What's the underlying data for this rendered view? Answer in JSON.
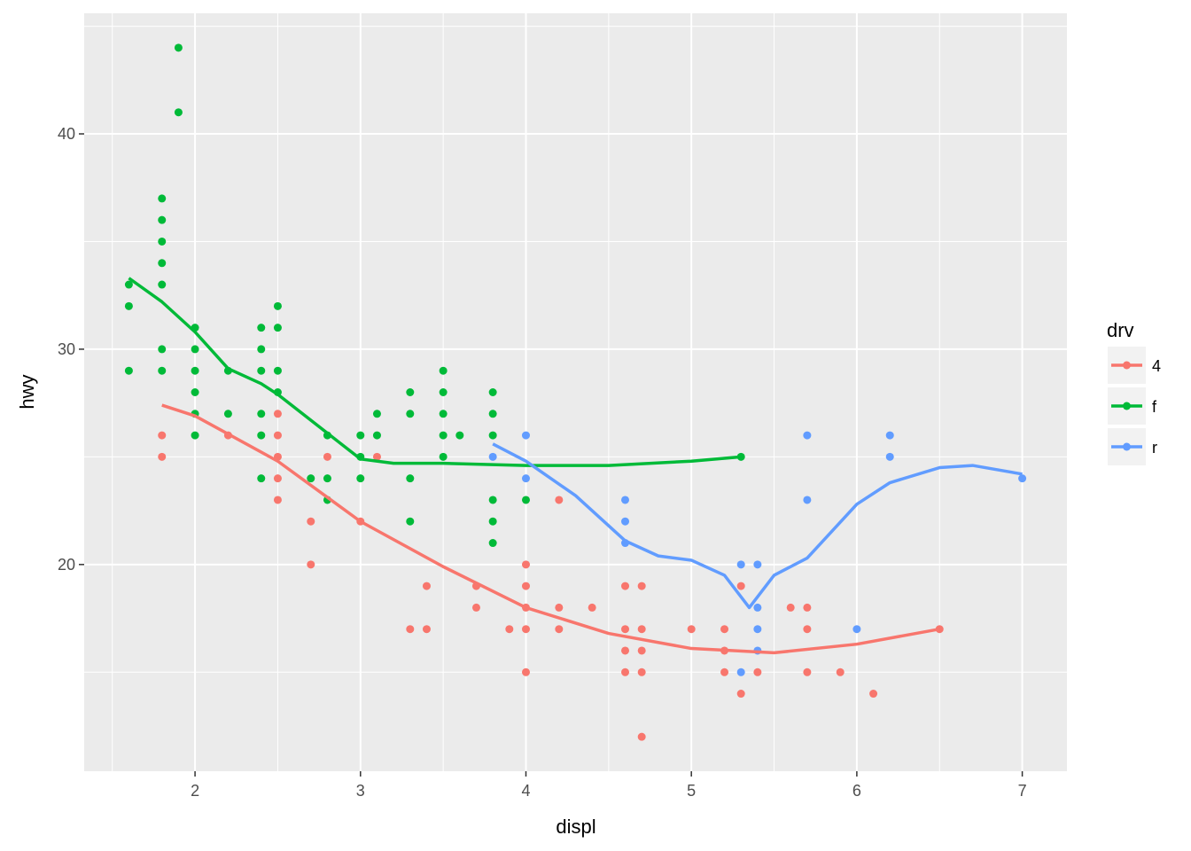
{
  "chart_data": {
    "type": "scatter",
    "xlabel": "displ",
    "ylabel": "hwy",
    "xlim": [
      1.33,
      7.27
    ],
    "ylim": [
      10.4,
      45.6
    ],
    "xticks": [
      2,
      3,
      4,
      5,
      6,
      7
    ],
    "yticks": [
      20,
      30,
      40
    ],
    "x_minor_breaks": [
      1.5,
      2.5,
      3.5,
      4.5,
      5.5,
      6.5
    ],
    "y_minor_breaks": [
      15,
      25,
      35,
      45
    ],
    "grid": true,
    "legend_title": "drv",
    "legend": "right",
    "series": [
      {
        "name": "4",
        "color": "#F8766D",
        "x": [
          1.8,
          1.8,
          2.2,
          2.5,
          2.5,
          2.5,
          2.5,
          2.5,
          2.7,
          2.7,
          2.8,
          3.0,
          3.1,
          3.3,
          3.4,
          3.4,
          3.7,
          3.7,
          3.9,
          4.0,
          4.0,
          4.0,
          4.0,
          4.0,
          4.2,
          4.2,
          4.2,
          4.4,
          4.6,
          4.6,
          4.6,
          4.6,
          4.7,
          4.7,
          4.7,
          4.7,
          4.7,
          5.0,
          5.2,
          5.2,
          5.2,
          5.3,
          5.3,
          5.4,
          5.6,
          5.7,
          5.7,
          5.7,
          5.9,
          6.1,
          6.5
        ],
        "y": [
          26,
          25,
          26,
          27,
          26,
          25,
          24,
          23,
          22,
          20,
          25,
          22,
          25,
          17,
          19,
          17,
          19,
          18,
          17,
          20,
          19,
          18,
          17,
          15,
          23,
          18,
          17,
          18,
          19,
          17,
          16,
          15,
          19,
          17,
          16,
          15,
          12,
          17,
          17,
          16,
          15,
          19,
          14,
          15,
          18,
          18,
          17,
          15,
          15,
          14,
          17
        ],
        "smooth": {
          "x": [
            1.8,
            2.0,
            2.5,
            3.0,
            3.5,
            4.0,
            4.5,
            5.0,
            5.5,
            6.0,
            6.5
          ],
          "y": [
            27.4,
            26.9,
            24.8,
            22.0,
            19.9,
            18.0,
            16.8,
            16.1,
            15.9,
            16.3,
            17.0
          ]
        }
      },
      {
        "name": "f",
        "color": "#00BA38",
        "x": [
          1.6,
          1.6,
          1.6,
          1.8,
          1.8,
          1.8,
          1.8,
          1.8,
          1.8,
          1.8,
          1.9,
          1.9,
          2.0,
          2.0,
          2.0,
          2.0,
          2.0,
          2.0,
          2.2,
          2.2,
          2.4,
          2.4,
          2.4,
          2.4,
          2.4,
          2.4,
          2.5,
          2.5,
          2.5,
          2.5,
          2.7,
          2.8,
          2.8,
          2.8,
          3.0,
          3.0,
          3.0,
          3.1,
          3.1,
          3.3,
          3.3,
          3.3,
          3.3,
          3.5,
          3.5,
          3.5,
          3.5,
          3.5,
          3.6,
          3.8,
          3.8,
          3.8,
          3.8,
          3.8,
          3.8,
          4.0,
          5.3
        ],
        "y": [
          33,
          32,
          29,
          37,
          36,
          35,
          34,
          33,
          30,
          29,
          44,
          41,
          31,
          30,
          29,
          28,
          27,
          26,
          29,
          27,
          31,
          30,
          29,
          27,
          26,
          24,
          32,
          31,
          29,
          28,
          24,
          26,
          24,
          23,
          26,
          25,
          24,
          27,
          26,
          28,
          27,
          24,
          22,
          29,
          28,
          27,
          26,
          25,
          26,
          28,
          27,
          26,
          23,
          22,
          21,
          23,
          25
        ],
        "smooth": {
          "x": [
            1.6,
            1.8,
            2.0,
            2.2,
            2.4,
            2.5,
            2.8,
            3.0,
            3.2,
            3.5,
            4.0,
            4.5,
            5.0,
            5.3
          ],
          "y": [
            33.3,
            32.2,
            30.8,
            29.1,
            28.4,
            27.9,
            26.1,
            24.9,
            24.7,
            24.7,
            24.6,
            24.6,
            24.8,
            25.0
          ]
        }
      },
      {
        "name": "r",
        "color": "#619CFF",
        "x": [
          3.8,
          4.0,
          4.0,
          4.6,
          4.6,
          4.6,
          5.3,
          5.3,
          5.4,
          5.4,
          5.4,
          5.4,
          5.7,
          5.7,
          6.0,
          6.2,
          6.2,
          7.0
        ],
        "y": [
          25,
          26,
          24,
          23,
          22,
          21,
          20,
          15,
          20,
          18,
          17,
          16,
          26,
          23,
          17,
          26,
          25,
          24
        ],
        "smooth": {
          "x": [
            3.8,
            4.0,
            4.3,
            4.6,
            4.8,
            5.0,
            5.2,
            5.35,
            5.5,
            5.7,
            6.0,
            6.2,
            6.5,
            6.7,
            7.0
          ],
          "y": [
            25.6,
            24.8,
            23.2,
            21.1,
            20.4,
            20.2,
            19.5,
            18.0,
            19.5,
            20.3,
            22.8,
            23.8,
            24.5,
            24.6,
            24.2
          ]
        }
      }
    ]
  }
}
